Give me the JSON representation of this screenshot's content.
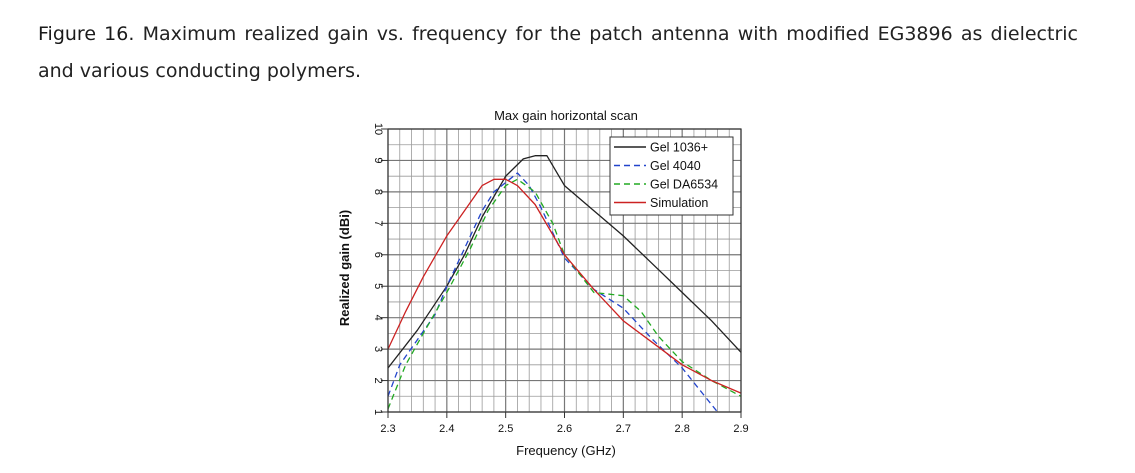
{
  "caption": {
    "label": "Figure 16.",
    "text": "Maximum realized gain vs. frequency for the patch antenna with modified EG3896 as dielectric and various conducting polymers."
  },
  "chart_data": {
    "type": "line",
    "title": "Max gain horizontal scan",
    "xlabel": "Frequency (GHz)",
    "ylabel": "Realized gain (dBi)",
    "xlim": [
      2.3,
      2.9
    ],
    "ylim": [
      1,
      10
    ],
    "xticks": [
      "2.3",
      "2.4",
      "2.5",
      "2.6",
      "2.7",
      "2.8",
      "2.9"
    ],
    "yticks": [
      "1",
      "2",
      "3",
      "4",
      "5",
      "6",
      "7",
      "8",
      "9",
      "10"
    ],
    "grid": true,
    "legend_position": "top-right",
    "series": [
      {
        "name": "Gel 1036+",
        "color": "#222222",
        "dash": "solid",
        "x": [
          2.3,
          2.35,
          2.4,
          2.43,
          2.46,
          2.5,
          2.53,
          2.55,
          2.57,
          2.6,
          2.65,
          2.7,
          2.75,
          2.8,
          2.85,
          2.9
        ],
        "y": [
          2.4,
          3.6,
          5.0,
          6.0,
          7.2,
          8.5,
          9.05,
          9.15,
          9.15,
          8.2,
          7.4,
          6.6,
          5.7,
          4.8,
          3.9,
          2.9
        ]
      },
      {
        "name": "Gel 4040",
        "color": "#2244cc",
        "dash": "6,4",
        "x": [
          2.3,
          2.32,
          2.35,
          2.38,
          2.4,
          2.43,
          2.46,
          2.48,
          2.5,
          2.52,
          2.54,
          2.56,
          2.6,
          2.65,
          2.7,
          2.75,
          2.8,
          2.83,
          2.86
        ],
        "y": [
          1.5,
          2.5,
          3.3,
          4.1,
          5.0,
          6.2,
          7.4,
          8.0,
          8.3,
          8.6,
          8.2,
          7.5,
          5.9,
          4.9,
          4.3,
          3.3,
          2.4,
          1.7,
          1.0
        ]
      },
      {
        "name": "Gel DA6534",
        "color": "#22aa22",
        "dash": "6,4",
        "x": [
          2.3,
          2.33,
          2.36,
          2.4,
          2.44,
          2.47,
          2.5,
          2.52,
          2.55,
          2.58,
          2.6,
          2.65,
          2.7,
          2.73,
          2.76,
          2.8,
          2.85,
          2.9
        ],
        "y": [
          1.1,
          2.5,
          3.5,
          4.8,
          6.2,
          7.4,
          8.2,
          8.4,
          8.0,
          7.0,
          6.0,
          4.8,
          4.7,
          4.2,
          3.4,
          2.6,
          2.0,
          1.5
        ]
      },
      {
        "name": "Simulation",
        "color": "#cc2222",
        "dash": "solid",
        "x": [
          2.3,
          2.33,
          2.36,
          2.4,
          2.43,
          2.46,
          2.48,
          2.5,
          2.52,
          2.55,
          2.6,
          2.65,
          2.7,
          2.75,
          2.8,
          2.85,
          2.9
        ],
        "y": [
          3.0,
          4.2,
          5.3,
          6.6,
          7.4,
          8.2,
          8.4,
          8.4,
          8.2,
          7.6,
          6.0,
          4.9,
          3.9,
          3.2,
          2.5,
          2.0,
          1.6
        ]
      }
    ]
  }
}
